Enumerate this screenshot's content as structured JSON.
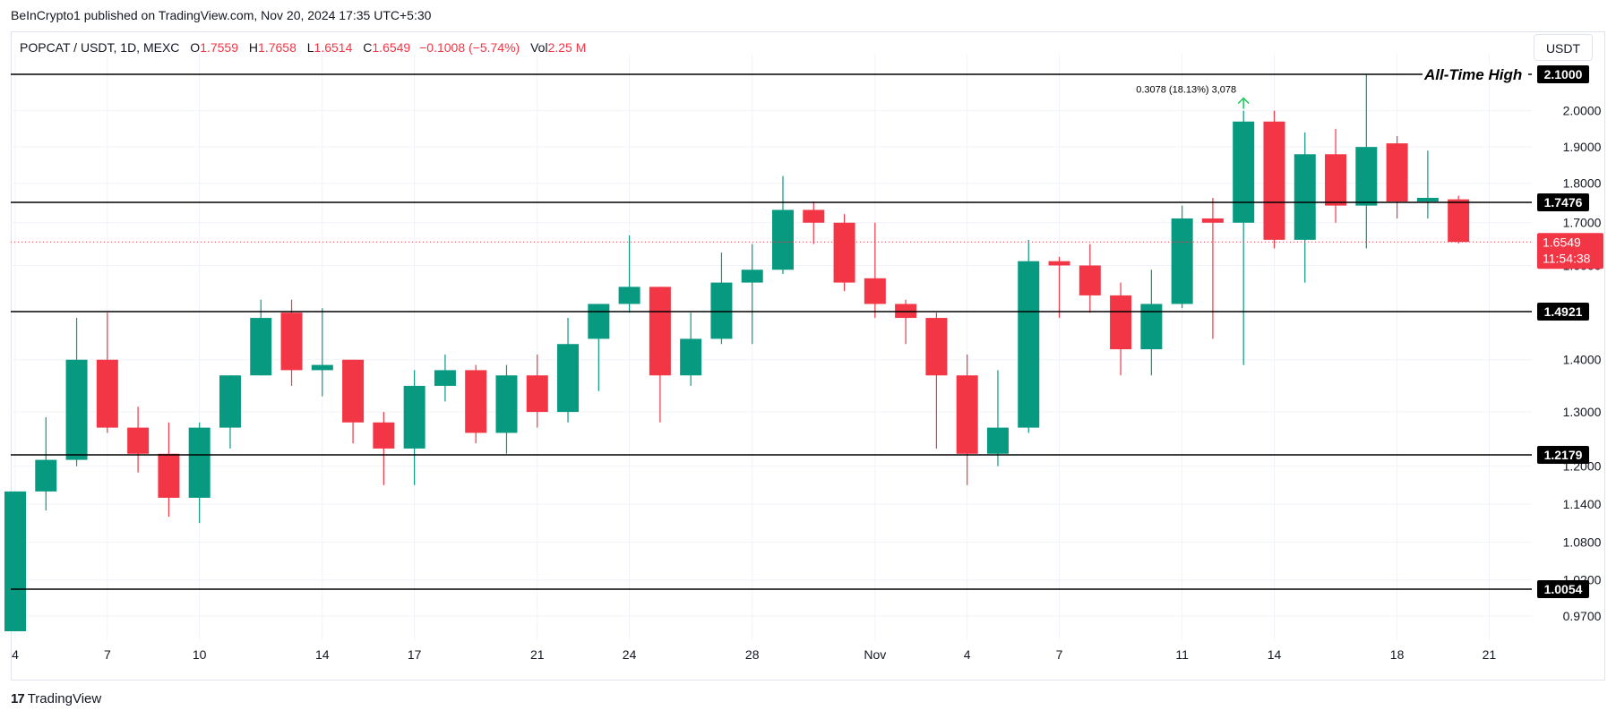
{
  "header": {
    "published": "BeInCrypto1 published on TradingView.com, Nov 20, 2024 17:35 UTC+5:30"
  },
  "legend": {
    "symbol": "POPCAT / USDT, 1D, MEXC",
    "o_label": "O",
    "o_value": "1.7559",
    "h_label": "H",
    "h_value": "1.7658",
    "l_label": "L",
    "l_value": "1.6514",
    "c_label": "C",
    "c_value": "1.6549",
    "change": "−0.1008 (−5.74%)",
    "vol_label": "Vol",
    "vol_value": "2.25 M"
  },
  "currency_button": "USDT",
  "brand": "TradingView",
  "colors": {
    "up": "#089981",
    "down": "#f23645",
    "grid": "#f0f3fa",
    "axis_text": "#131722"
  },
  "chart_data": {
    "type": "candlestick",
    "y_axis_ticks": [
      "0.9700",
      "1.0200",
      "1.0800",
      "1.1400",
      "1.2000",
      "1.3000",
      "1.4000",
      "1.6000",
      "1.7000",
      "1.8000",
      "1.9000",
      "2.0000"
    ],
    "x_axis_ticks": [
      {
        "index": 0,
        "label": "4"
      },
      {
        "index": 3,
        "label": "7"
      },
      {
        "index": 6,
        "label": "10"
      },
      {
        "index": 10,
        "label": "14"
      },
      {
        "index": 13,
        "label": "17"
      },
      {
        "index": 17,
        "label": "21"
      },
      {
        "index": 20,
        "label": "24"
      },
      {
        "index": 24,
        "label": "28"
      },
      {
        "index": 28,
        "label": "Nov"
      },
      {
        "index": 31,
        "label": "4"
      },
      {
        "index": 34,
        "label": "7"
      },
      {
        "index": 38,
        "label": "11"
      },
      {
        "index": 41,
        "label": "14"
      },
      {
        "index": 45,
        "label": "18"
      },
      {
        "index": 48,
        "label": "21"
      }
    ],
    "candles": [
      {
        "o": 0.95,
        "h": 1.16,
        "l": 0.95,
        "c": 1.16
      },
      {
        "o": 1.16,
        "h": 1.29,
        "l": 1.13,
        "c": 1.21
      },
      {
        "o": 1.21,
        "h": 1.48,
        "l": 1.2,
        "c": 1.4
      },
      {
        "o": 1.4,
        "h": 1.49,
        "l": 1.26,
        "c": 1.27
      },
      {
        "o": 1.27,
        "h": 1.31,
        "l": 1.19,
        "c": 1.22
      },
      {
        "o": 1.22,
        "h": 1.28,
        "l": 1.12,
        "c": 1.15
      },
      {
        "o": 1.15,
        "h": 1.28,
        "l": 1.11,
        "c": 1.27
      },
      {
        "o": 1.27,
        "h": 1.37,
        "l": 1.23,
        "c": 1.37
      },
      {
        "o": 1.37,
        "h": 1.52,
        "l": 1.37,
        "c": 1.48
      },
      {
        "o": 1.49,
        "h": 1.52,
        "l": 1.35,
        "c": 1.38
      },
      {
        "o": 1.38,
        "h": 1.5,
        "l": 1.33,
        "c": 1.39
      },
      {
        "o": 1.4,
        "h": 1.4,
        "l": 1.24,
        "c": 1.28
      },
      {
        "o": 1.28,
        "h": 1.3,
        "l": 1.17,
        "c": 1.23
      },
      {
        "o": 1.23,
        "h": 1.38,
        "l": 1.17,
        "c": 1.35
      },
      {
        "o": 1.35,
        "h": 1.41,
        "l": 1.32,
        "c": 1.38
      },
      {
        "o": 1.38,
        "h": 1.39,
        "l": 1.24,
        "c": 1.26
      },
      {
        "o": 1.26,
        "h": 1.39,
        "l": 1.22,
        "c": 1.37
      },
      {
        "o": 1.37,
        "h": 1.41,
        "l": 1.27,
        "c": 1.3
      },
      {
        "o": 1.3,
        "h": 1.48,
        "l": 1.28,
        "c": 1.43
      },
      {
        "o": 1.44,
        "h": 1.5,
        "l": 1.34,
        "c": 1.51
      },
      {
        "o": 1.51,
        "h": 1.67,
        "l": 1.49,
        "c": 1.55
      },
      {
        "o": 1.55,
        "h": 1.55,
        "l": 1.28,
        "c": 1.37
      },
      {
        "o": 1.37,
        "h": 1.49,
        "l": 1.35,
        "c": 1.44
      },
      {
        "o": 1.44,
        "h": 1.63,
        "l": 1.43,
        "c": 1.56
      },
      {
        "o": 1.56,
        "h": 1.65,
        "l": 1.43,
        "c": 1.59
      },
      {
        "o": 1.59,
        "h": 1.82,
        "l": 1.58,
        "c": 1.73
      },
      {
        "o": 1.73,
        "h": 1.75,
        "l": 1.65,
        "c": 1.7
      },
      {
        "o": 1.7,
        "h": 1.72,
        "l": 1.54,
        "c": 1.56
      },
      {
        "o": 1.57,
        "h": 1.7,
        "l": 1.48,
        "c": 1.51
      },
      {
        "o": 1.51,
        "h": 1.52,
        "l": 1.43,
        "c": 1.48
      },
      {
        "o": 1.48,
        "h": 1.49,
        "l": 1.23,
        "c": 1.37
      },
      {
        "o": 1.37,
        "h": 1.41,
        "l": 1.17,
        "c": 1.22
      },
      {
        "o": 1.22,
        "h": 1.38,
        "l": 1.2,
        "c": 1.27
      },
      {
        "o": 1.27,
        "h": 1.66,
        "l": 1.26,
        "c": 1.61
      },
      {
        "o": 1.61,
        "h": 1.62,
        "l": 1.48,
        "c": 1.6
      },
      {
        "o": 1.6,
        "h": 1.65,
        "l": 1.49,
        "c": 1.53
      },
      {
        "o": 1.53,
        "h": 1.56,
        "l": 1.37,
        "c": 1.42
      },
      {
        "o": 1.42,
        "h": 1.59,
        "l": 1.37,
        "c": 1.51
      },
      {
        "o": 1.51,
        "h": 1.74,
        "l": 1.5,
        "c": 1.71
      },
      {
        "o": 1.71,
        "h": 1.76,
        "l": 1.44,
        "c": 1.7
      },
      {
        "o": 1.7,
        "h": 2.0,
        "l": 1.39,
        "c": 1.97
      },
      {
        "o": 1.97,
        "h": 2.0,
        "l": 1.64,
        "c": 1.66
      },
      {
        "o": 1.66,
        "h": 1.94,
        "l": 1.56,
        "c": 1.88
      },
      {
        "o": 1.88,
        "h": 1.95,
        "l": 1.7,
        "c": 1.74
      },
      {
        "o": 1.74,
        "h": 2.1,
        "l": 1.64,
        "c": 1.9
      },
      {
        "o": 1.91,
        "h": 1.93,
        "l": 1.71,
        "c": 1.75
      },
      {
        "o": 1.75,
        "h": 1.89,
        "l": 1.71,
        "c": 1.76
      },
      {
        "o": 1.7559,
        "h": 1.7658,
        "l": 1.6514,
        "c": 1.6549
      }
    ],
    "levels": [
      {
        "value": 2.1,
        "label": "2.1000"
      },
      {
        "value": 1.7476,
        "label": "1.7476"
      },
      {
        "value": 1.4921,
        "label": "1.4921"
      },
      {
        "value": 1.2179,
        "label": "1.2179"
      },
      {
        "value": 1.0054,
        "label": "1.0054"
      }
    ],
    "ath_label": "All-Time High",
    "current_price": {
      "value": 1.6549,
      "label": "1.6549",
      "countdown": "11:54:38"
    },
    "measure": {
      "text": "0.3078 (18.13%) 3,078",
      "index": 40
    }
  }
}
